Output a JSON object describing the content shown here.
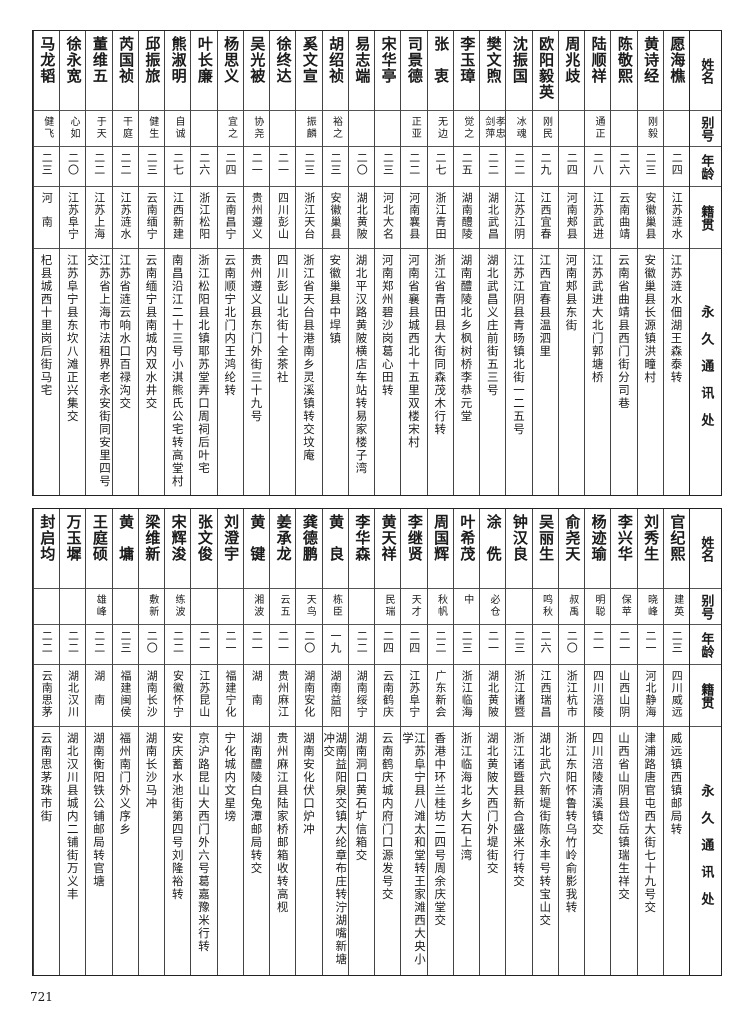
{
  "headers": {
    "name": "姓名",
    "alias": "别号",
    "age": "年龄",
    "native": "籍贯",
    "address": "永久通讯处"
  },
  "top_rows": [
    {
      "name": "愿海樵",
      "alias": "",
      "age": "二四",
      "native": "江苏涟水",
      "address": "江苏涟水佃湖王森泰转"
    },
    {
      "name": "黄诗经",
      "alias": "刚毅",
      "age": "二三",
      "native": "安徽巢县",
      "address": "安徽巢县长源镇洪疃村"
    },
    {
      "name": "陈敬熙",
      "alias": "",
      "age": "二六",
      "native": "云南曲靖",
      "address": "云南省曲靖县西门街分司巷"
    },
    {
      "name": "陆顺祥",
      "alias": "通正",
      "age": "二八",
      "native": "江苏武进",
      "address": "江苏武进大北门郭塘桥"
    },
    {
      "name": "周兆歧",
      "alias": "",
      "age": "二四",
      "native": "河南郏县",
      "address": "河南郏县东街"
    },
    {
      "name": "欧阳毅英",
      "alias": "刚民",
      "age": "二九",
      "native": "江西宜春",
      "address": "江西宜春县温泗里"
    },
    {
      "name": "沈振国",
      "alias": "冰魂",
      "age": "二二",
      "native": "江苏江阴",
      "address": "江苏江阴县青旸镇北街一二五号"
    },
    {
      "name": "樊文煦",
      "alias": "孝忠剑萍",
      "age": "二二",
      "native": "湖北武昌",
      "address": "湖北武昌义庄前街五三号"
    },
    {
      "name": "李玉璋",
      "alias": "觉之",
      "age": "二五",
      "native": "湖南醴陵",
      "address": "湖南醴陵北乡枫树桥李恭元堂"
    },
    {
      "name": "张　衷",
      "alias": "无边",
      "age": "二七",
      "native": "浙江青田",
      "address": "浙江省青田县大街同森茂木行转"
    },
    {
      "name": "司景德",
      "alias": "正亚",
      "age": "二二",
      "native": "河南襄县",
      "address": "河南省襄县城西北十五里双楼宋村"
    },
    {
      "name": "宋华亭",
      "alias": "",
      "age": "二三",
      "native": "河北大名",
      "address": "河南郑州碧沙岗葛心田转"
    },
    {
      "name": "易志端",
      "alias": "",
      "age": "二〇",
      "native": "湖北黄陂",
      "address": "湖北平汉路黄陂横店车站转易家楼子湾"
    },
    {
      "name": "胡绍祯",
      "alias": "裕之",
      "age": "二三",
      "native": "安徽巢县",
      "address": "安徽巢县中垾镇"
    },
    {
      "name": "奚文宣",
      "alias": "振麟",
      "age": "二三",
      "native": "浙江天台",
      "address": "浙江省天台县港南乡灵溪镇转交坟庵"
    },
    {
      "name": "徐终达",
      "alias": "",
      "age": "二一",
      "native": "四川彭山",
      "address": "四川彭山北街十全茶社"
    },
    {
      "name": "吴光被",
      "alias": "协尧",
      "age": "二一",
      "native": "贵州遵义",
      "address": "贵州遵义县东门外街三十九号"
    },
    {
      "name": "杨思义",
      "alias": "宜之",
      "age": "二四",
      "native": "云南昌宁",
      "address": "云南顺宁北门内王鸿纶转"
    },
    {
      "name": "叶长廉",
      "alias": "",
      "age": "二六",
      "native": "浙江松阳",
      "address": "浙江松阳县北镇耶苏堂弄口周祠后叶宅"
    },
    {
      "name": "熊淑明",
      "alias": "自诚",
      "age": "二七",
      "native": "江西新建",
      "address": "南昌沿江二十三号小淇熊氏公宅转高堂村"
    },
    {
      "name": "邱振旅",
      "alias": "健生",
      "age": "二三",
      "native": "云南缅宁",
      "address": "云南缅宁县南城内双水井交"
    },
    {
      "name": "芮国祯",
      "alias": "干庭",
      "age": "二二",
      "native": "江苏涟水",
      "address": "江苏省涟云响水口百禄沟交"
    },
    {
      "name": "董维五",
      "alias": "于天",
      "age": "二二",
      "native": "江苏上海",
      "address": "江苏省上海市法租界老永安街同安里四号交"
    },
    {
      "name": "徐永宽",
      "alias": "心如",
      "age": "二〇",
      "native": "江苏阜宁",
      "address": "江苏阜宁县东坎八滩正兴集交"
    },
    {
      "name": "马龙韬",
      "alias": "健飞",
      "age": "二三",
      "native": "河　南",
      "address": "杞县城西十里岗后街马宅"
    }
  ],
  "bottom_rows": [
    {
      "name": "官纪熙",
      "alias": "建英",
      "age": "二三",
      "native": "四川威远",
      "address": "威远镇西镇邮局转"
    },
    {
      "name": "刘秀生",
      "alias": "晓峰",
      "age": "二一",
      "native": "河北静海",
      "address": "津浦路唐官屯西大街七十九号交"
    },
    {
      "name": "李兴华",
      "alias": "保苹",
      "age": "二一",
      "native": "山西山阴",
      "address": "山西省山阴县岱岳镇瑞生祥交"
    },
    {
      "name": "杨迹瑜",
      "alias": "明聪",
      "age": "二一",
      "native": "四川涪陵",
      "address": "四川涪陵清溪镇交"
    },
    {
      "name": "俞尧天",
      "alias": "叔禹",
      "age": "二〇",
      "native": "浙江杭市",
      "address": "浙江东阳怀鲁转乌竹岭俞影我转"
    },
    {
      "name": "吴丽生",
      "alias": "鸣秋",
      "age": "二六",
      "native": "江西瑞昌",
      "address": "湖北武穴新堤街陈永丰号转宝山交"
    },
    {
      "name": "钟汉良",
      "alias": "",
      "age": "二三",
      "native": "浙江诸暨",
      "address": "浙江诸暨县新合盛米行转交"
    },
    {
      "name": "涂　侁",
      "alias": "必仓",
      "age": "二一",
      "native": "湖北黄陂",
      "address": "湖北黄陂大西门外堤街交"
    },
    {
      "name": "叶希茂",
      "alias": "中",
      "age": "二三",
      "native": "浙江临海",
      "address": "浙江临海北乡大石上湾"
    },
    {
      "name": "周国辉",
      "alias": "秋帆",
      "age": "二二",
      "native": "广东新会",
      "address": "香港中环兰桂坊二四号周余庆堂交"
    },
    {
      "name": "李继贤",
      "alias": "天才",
      "age": "二四",
      "native": "江苏阜宁",
      "address": "江苏阜宁县八滩太和堂转王家滩西大央小学"
    },
    {
      "name": "黄天祥",
      "alias": "民瑞",
      "age": "二四",
      "native": "云南鹤庆",
      "address": "云南鹤庆城内府门口源发号交"
    },
    {
      "name": "李华森",
      "alias": "",
      "age": "二二",
      "native": "湖南绥宁",
      "address": "湖南洞口黄石圹信箱交"
    },
    {
      "name": "黄　良",
      "alias": "栋臣",
      "age": "一九",
      "native": "湖南益阳",
      "address": "湖南益阳泉交镇大纶章布庄转泞湖嘴新塘冲交"
    },
    {
      "name": "龚德鹏",
      "alias": "天鸟",
      "age": "二〇",
      "native": "湖南安化",
      "address": "湖南安化伏口炉冲"
    },
    {
      "name": "姜承龙",
      "alias": "云五",
      "age": "二一",
      "native": "贵州麻江",
      "address": "贵州麻江县陆家桥邮箱收转高枧"
    },
    {
      "name": "黄　键",
      "alias": "湘波",
      "age": "二一",
      "native": "湖　南",
      "address": "湖南醴陵白兔潭邮局转交"
    },
    {
      "name": "刘澄宇",
      "alias": "",
      "age": "二一",
      "native": "福建宁化",
      "address": "宁化城内文星塝"
    },
    {
      "name": "张文俊",
      "alias": "",
      "age": "二一",
      "native": "江苏昆山",
      "address": "京沪路昆山大西门外六号葛嘉豫米行转"
    },
    {
      "name": "宋辉浚",
      "alias": "练波",
      "age": "二二",
      "native": "安徽怀宁",
      "address": "安庆蓄水池街第四号刘隆裕转"
    },
    {
      "name": "梁维新",
      "alias": "敷新",
      "age": "二〇",
      "native": "湖南长沙",
      "address": "湖南长沙马冲"
    },
    {
      "name": "黄　墉",
      "alias": "",
      "age": "二三",
      "native": "福建闽侯",
      "address": "福州南门外义序乡"
    },
    {
      "name": "王庭硕",
      "alias": "雄峰",
      "age": "二二",
      "native": "湖　南",
      "address": "湖南衡阳铁公铺邮局转官塘"
    },
    {
      "name": "万玉墀",
      "alias": "",
      "age": "二二",
      "native": "湖北汉川",
      "address": "湖北汉川县城内二铺街万义丰"
    },
    {
      "name": "封启均",
      "alias": "",
      "age": "二二",
      "native": "云南思茅",
      "address": "云南思茅珠市街"
    }
  ],
  "page_number": "721"
}
